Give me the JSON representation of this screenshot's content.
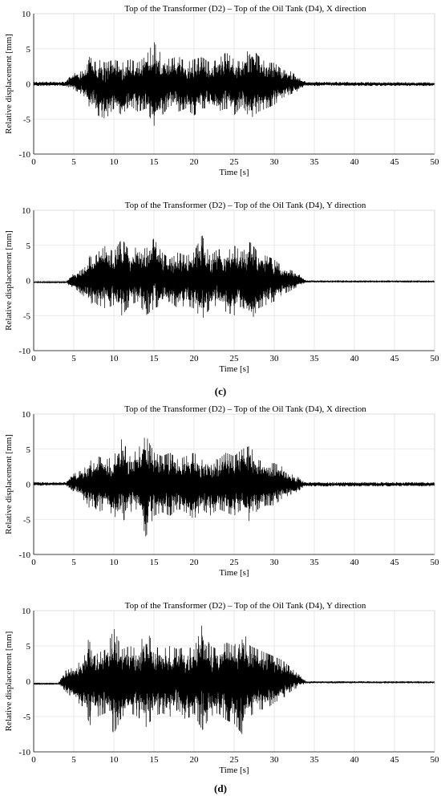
{
  "figure": {
    "subfigure_labels": [
      "(c)",
      "(d)"
    ]
  },
  "chart_data": [
    {
      "type": "line",
      "title": "Top of the Transformer (D2) – Top of the Oil Tank (D4), X direction",
      "xlabel": "Time [s]",
      "ylabel": "Relative displacement [mm]",
      "xlim": [
        0,
        50
      ],
      "ylim": [
        -10,
        10
      ],
      "xticks": [
        "0",
        "5",
        "10",
        "15",
        "20",
        "25",
        "30",
        "35",
        "40",
        "45",
        "50"
      ],
      "yticks": [
        "10",
        "5",
        "0",
        "-5",
        "-10"
      ],
      "grid": true,
      "series": [
        {
          "color": "#000000",
          "x": [
            0,
            4,
            4.5,
            5,
            6,
            6.5,
            7,
            7.5,
            8,
            9,
            10,
            11,
            12,
            13,
            14,
            15,
            16,
            17,
            18,
            19,
            20,
            21,
            22,
            23,
            24,
            25,
            26,
            27,
            28,
            29,
            30,
            31,
            32,
            33,
            33.5,
            34,
            50
          ],
          "y_max": [
            0.3,
            0.3,
            1.0,
            1.5,
            1.8,
            2.0,
            4.0,
            3.0,
            3.5,
            3.0,
            3.5,
            3.0,
            3.5,
            3.0,
            4.0,
            6.0,
            4.0,
            3.5,
            4.0,
            3.0,
            3.5,
            3.8,
            3.0,
            3.5,
            4.5,
            3.5,
            3.0,
            5.5,
            4.0,
            3.0,
            3.0,
            2.0,
            1.8,
            1.0,
            0.5,
            0.3,
            0.2
          ],
          "y_min": [
            -0.3,
            -0.3,
            -0.6,
            -0.8,
            -1.5,
            -2.0,
            -3.5,
            -2.5,
            -4.5,
            -5.0,
            -3.5,
            -4.5,
            -3.0,
            -4.0,
            -3.5,
            -6.0,
            -4.5,
            -3.0,
            -4.0,
            -3.5,
            -4.5,
            -3.5,
            -3.5,
            -4.0,
            -3.5,
            -4.5,
            -3.0,
            -5.0,
            -4.0,
            -3.5,
            -3.0,
            -2.0,
            -1.5,
            -1.0,
            -0.5,
            -0.3,
            -0.3
          ]
        }
      ]
    },
    {
      "type": "line",
      "title": "Top of the Transformer (D2) – Top of the Oil Tank (D4), Y direction",
      "xlabel": "Time [s]",
      "ylabel": "Relative displacement [mm]",
      "xlim": [
        0,
        50
      ],
      "ylim": [
        -10,
        10
      ],
      "xticks": [
        "0",
        "5",
        "10",
        "15",
        "20",
        "25",
        "30",
        "35",
        "40",
        "45",
        "50"
      ],
      "yticks": [
        "10",
        "5",
        "0",
        "-5",
        "-10"
      ],
      "grid": true,
      "series": [
        {
          "color": "#000000",
          "x": [
            0,
            4,
            4.5,
            5,
            6,
            6.5,
            7,
            7.5,
            8,
            9,
            10,
            11,
            12,
            13,
            14,
            15,
            16,
            17,
            18,
            19,
            20,
            21,
            22,
            23,
            24,
            25,
            26,
            27,
            28,
            29,
            30,
            31,
            32,
            33,
            33.5,
            34,
            50
          ],
          "y_max": [
            -0.2,
            -0.2,
            0.5,
            1.0,
            1.5,
            2.0,
            3.5,
            3.0,
            4.0,
            5.0,
            4.0,
            6.0,
            4.0,
            5.0,
            4.5,
            6.0,
            4.0,
            3.0,
            4.0,
            3.5,
            4.0,
            6.5,
            3.5,
            4.5,
            4.0,
            5.0,
            4.0,
            5.5,
            4.0,
            3.5,
            3.0,
            2.0,
            1.5,
            1.0,
            0.5,
            0.0,
            0.0
          ],
          "y_min": [
            -0.3,
            -0.3,
            -0.8,
            -1.0,
            -2.0,
            -2.5,
            -3.5,
            -3.0,
            -3.5,
            -4.0,
            -3.5,
            -5.0,
            -3.5,
            -3.0,
            -5.0,
            -4.0,
            -3.5,
            -3.0,
            -4.0,
            -3.5,
            -4.0,
            -5.5,
            -4.0,
            -3.5,
            -4.5,
            -5.0,
            -3.5,
            -6.0,
            -4.0,
            -3.5,
            -3.0,
            -2.0,
            -1.5,
            -0.8,
            -0.5,
            -0.3,
            -0.3
          ]
        }
      ]
    },
    {
      "type": "line",
      "title": "Top of the Transformer (D2) – Top of the Oil Tank (D4), X direction",
      "xlabel": "Time [s]",
      "ylabel": "Relative displacement [mm]",
      "xlim": [
        0,
        50
      ],
      "ylim": [
        -10,
        10
      ],
      "xticks": [
        "0",
        "5",
        "10",
        "15",
        "20",
        "25",
        "30",
        "35",
        "40",
        "45",
        "50"
      ],
      "yticks": [
        "10",
        "5",
        "0",
        "-5",
        "-10"
      ],
      "grid": true,
      "series": [
        {
          "color": "#000000",
          "x": [
            0,
            4,
            4.5,
            5,
            6,
            6.5,
            7,
            7.5,
            8,
            9,
            10,
            11,
            12,
            13,
            14,
            15,
            16,
            17,
            18,
            19,
            20,
            21,
            22,
            23,
            24,
            25,
            26,
            27,
            28,
            29,
            30,
            31,
            32,
            33,
            33.5,
            34,
            50
          ],
          "y_max": [
            0.3,
            0.3,
            1.0,
            1.5,
            2.0,
            2.5,
            3.5,
            3.0,
            4.0,
            3.5,
            4.0,
            6.5,
            4.0,
            5.0,
            7.0,
            4.5,
            4.0,
            4.5,
            3.5,
            4.0,
            4.5,
            3.5,
            4.0,
            3.5,
            4.5,
            4.0,
            5.0,
            5.5,
            3.5,
            3.0,
            3.0,
            2.5,
            1.5,
            1.0,
            0.5,
            0.3,
            0.3
          ],
          "y_min": [
            -0.2,
            -0.2,
            -0.6,
            -1.0,
            -2.0,
            -2.5,
            -3.5,
            -3.0,
            -4.0,
            -3.5,
            -4.5,
            -5.5,
            -4.0,
            -3.5,
            -7.5,
            -4.5,
            -4.0,
            -4.5,
            -3.5,
            -4.0,
            -5.0,
            -3.5,
            -4.5,
            -3.5,
            -4.0,
            -4.5,
            -3.5,
            -5.5,
            -3.5,
            -3.0,
            -3.0,
            -2.0,
            -1.5,
            -1.0,
            -0.5,
            -0.3,
            -0.3
          ]
        }
      ]
    },
    {
      "type": "line",
      "title": "Top of the Transformer (D2) – Top of the Oil Tank (D4), Y direction",
      "xlabel": "Time [s]",
      "ylabel": "Relative displacement [mm]",
      "xlim": [
        0,
        50
      ],
      "ylim": [
        -10,
        10
      ],
      "xticks": [
        "0",
        "5",
        "10",
        "15",
        "20",
        "25",
        "30",
        "35",
        "40",
        "45",
        "50"
      ],
      "yticks": [
        "10",
        "5",
        "0",
        "-5",
        "-10"
      ],
      "grid": true,
      "series": [
        {
          "color": "#000000",
          "x": [
            0,
            3,
            3.5,
            4,
            5,
            6,
            6.5,
            7,
            7.5,
            8,
            9,
            10,
            11,
            12,
            13,
            14,
            15,
            16,
            17,
            18,
            19,
            20,
            21,
            22,
            23,
            24,
            25,
            26,
            27,
            28,
            29,
            30,
            31,
            32,
            33,
            33.5,
            34,
            50
          ],
          "y_max": [
            -0.3,
            -0.3,
            0.5,
            1.5,
            2.0,
            3.0,
            4.0,
            7.0,
            3.5,
            4.0,
            4.5,
            7.5,
            4.5,
            5.0,
            4.5,
            7.5,
            5.0,
            4.5,
            5.0,
            4.5,
            5.0,
            4.5,
            8.0,
            5.0,
            4.5,
            5.5,
            5.0,
            7.5,
            5.0,
            4.5,
            4.0,
            3.5,
            3.0,
            2.0,
            1.0,
            0.5,
            0.0,
            0.0
          ],
          "y_min": [
            -0.4,
            -0.4,
            -0.8,
            -1.5,
            -2.5,
            -3.5,
            -4.0,
            -6.5,
            -4.0,
            -5.0,
            -4.5,
            -7.5,
            -5.0,
            -4.5,
            -5.0,
            -6.5,
            -5.0,
            -4.5,
            -5.0,
            -4.0,
            -5.5,
            -4.5,
            -7.0,
            -5.0,
            -4.5,
            -5.5,
            -6.0,
            -7.5,
            -5.0,
            -4.0,
            -4.0,
            -3.0,
            -2.5,
            -1.5,
            -0.8,
            -0.5,
            -0.3,
            -0.3
          ]
        }
      ]
    }
  ]
}
